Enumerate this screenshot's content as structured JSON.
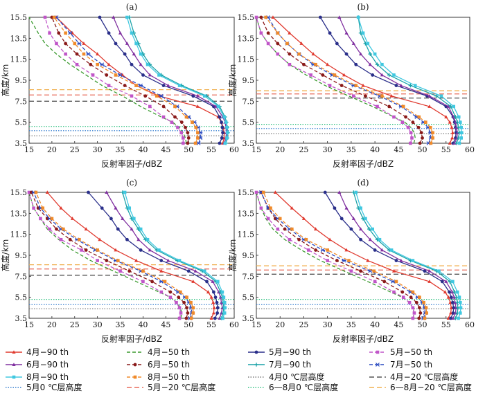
{
  "chart_data": {
    "type": "line",
    "xlabel": "反射率因子/dBZ",
    "ylabel": "高度/km",
    "xlim": [
      15,
      60
    ],
    "ylim": [
      3.5,
      15.5
    ],
    "xticks": [
      "15",
      "20",
      "25",
      "30",
      "35",
      "40",
      "45",
      "50",
      "55",
      "60"
    ],
    "yticks": [
      "3.5",
      "5.5",
      "7.5",
      "9.5",
      "11.5",
      "13.5",
      "15.5"
    ],
    "heights": [
      3.5,
      4.0,
      4.5,
      5.0,
      5.5,
      6.0,
      7.0,
      8.0,
      9.0,
      10.0,
      11.0,
      12.0,
      13.0,
      14.0,
      15.5
    ],
    "legend": [
      {
        "key": "apr90",
        "label": "4月−90 th",
        "color": "#e03a2f",
        "dash": "solid",
        "marker": "tri"
      },
      {
        "key": "apr50",
        "label": "4月−50 th",
        "color": "#3a9a2f",
        "dash": "dash",
        "marker": "none"
      },
      {
        "key": "may90",
        "label": "5月−90 th",
        "color": "#2a2f8a",
        "dash": "solid",
        "marker": "circle"
      },
      {
        "key": "may50",
        "label": "5月−50 th",
        "color": "#c055c8",
        "dash": "dash",
        "marker": "square"
      },
      {
        "key": "jun90",
        "label": "6月−90 th",
        "color": "#8030a0",
        "dash": "solid",
        "marker": "tri"
      },
      {
        "key": "jun50",
        "label": "6月−50 th",
        "color": "#8a1a1a",
        "dash": "dash",
        "marker": "circle"
      },
      {
        "key": "jul90",
        "label": "7月−90 th",
        "color": "#1aa2a8",
        "dash": "solid",
        "marker": "plus"
      },
      {
        "key": "jul50",
        "label": "7月−50 th",
        "color": "#2a4ac0",
        "dash": "dash",
        "marker": "star"
      },
      {
        "key": "aug90",
        "label": "8月−90 th",
        "color": "#40c8e0",
        "dash": "solid",
        "marker": "square"
      },
      {
        "key": "aug50",
        "label": "8月−50 th",
        "color": "#f08a2a",
        "dash": "dash",
        "marker": "square"
      },
      {
        "key": "apr0",
        "label": "4月0 ℃层高度",
        "color": "#777777",
        "dash": "dot",
        "marker": "none"
      },
      {
        "key": "apr20",
        "label": "4月−20 ℃层高度",
        "color": "#555555",
        "dash": "longdash",
        "marker": "none"
      },
      {
        "key": "may0",
        "label": "5月0 ℃层高度",
        "color": "#3a80d0",
        "dash": "dot",
        "marker": "none"
      },
      {
        "key": "may20",
        "label": "5月−20 ℃层高度",
        "color": "#e86a5a",
        "dash": "longdash",
        "marker": "none"
      },
      {
        "key": "jja0",
        "label": "6—8月0 ℃层高度",
        "color": "#30c080",
        "dash": "dot",
        "marker": "none"
      },
      {
        "key": "jja20",
        "label": "6—8月−20 ℃层高度",
        "color": "#f0b050",
        "dash": "longdash",
        "marker": "none"
      }
    ],
    "panels": [
      {
        "title": "(a)",
        "levels": {
          "apr0": 4.2,
          "may0": 4.7,
          "jja0": 5.1,
          "apr20": 7.5,
          "may20": 8.1,
          "jja20": 8.6
        },
        "series": {
          "apr90": [
            57.5,
            57.8,
            57.8,
            57.6,
            57.2,
            56.5,
            52,
            43.5,
            38.5,
            35.5,
            32.5,
            30,
            27,
            24.5,
            21
          ],
          "apr50": [
            49.5,
            49.3,
            48.8,
            48,
            46.5,
            44,
            39.5,
            35.5,
            31,
            27.5,
            24,
            21,
            18.5,
            17,
            15
          ],
          "may90": [
            56.8,
            57.3,
            57.5,
            57.4,
            57.2,
            56.8,
            55.5,
            51,
            44.5,
            40,
            37.5,
            36,
            34,
            32.5,
            30.5
          ],
          "may50": [
            48.8,
            48.8,
            48.4,
            47.6,
            46.3,
            44.5,
            41.5,
            37.5,
            32.5,
            29,
            25.5,
            23,
            21,
            19.5,
            18.5
          ],
          "jun90": [
            57.8,
            58.2,
            58.3,
            58.2,
            58,
            57.5,
            56,
            52,
            45.5,
            41.5,
            39.5,
            38,
            36.5,
            35,
            33.5
          ],
          "jun50": [
            49.8,
            50,
            49.8,
            49.3,
            48.5,
            47,
            44.5,
            40.5,
            36,
            32,
            28.5,
            25.5,
            23,
            21.5,
            20
          ],
          "jul90": [
            58.2,
            58.5,
            58.6,
            58.5,
            58.3,
            58,
            56.8,
            54,
            48.5,
            44,
            41.5,
            40,
            39,
            38,
            37
          ],
          "jul50": [
            52.2,
            52.6,
            52.6,
            52.1,
            51.3,
            50,
            47.5,
            44,
            39.5,
            35,
            31,
            28,
            26,
            24,
            21
          ],
          "aug90": [
            58,
            58.4,
            58.5,
            58.4,
            58.2,
            57.8,
            56.5,
            53.5,
            48,
            43.5,
            41,
            39.5,
            38.5,
            37.5,
            36.5
          ],
          "aug50": [
            51.5,
            52,
            52,
            51.6,
            50.8,
            49.5,
            47,
            43,
            38.5,
            34,
            30,
            27,
            25,
            23,
            20.5
          ]
        }
      },
      {
        "title": "(b)",
        "levels": {
          "apr0": 4.4,
          "may0": 4.9,
          "jja0": 5.3,
          "apr20": 7.8,
          "may20": 8.2,
          "jja20": 8.5
        },
        "series": {
          "apr90": [
            55.8,
            56.3,
            56.4,
            56.2,
            55.8,
            55,
            51.5,
            43.5,
            37.5,
            33.5,
            30,
            27,
            24.5,
            22,
            18.5
          ],
          "apr50": [
            48.2,
            48.5,
            48.3,
            47.6,
            46.3,
            44,
            39.5,
            34.5,
            29.5,
            25.5,
            22,
            19.5,
            17.5,
            16,
            15
          ],
          "may90": [
            56.5,
            57,
            57.1,
            57,
            56.8,
            56.5,
            55,
            51,
            44.5,
            39.5,
            36,
            34,
            32,
            30.5,
            28.5
          ],
          "may50": [
            47.5,
            47.8,
            47.6,
            47,
            45.8,
            44,
            40.5,
            35.5,
            30.5,
            26.5,
            22,
            19.5,
            17.5,
            16,
            15
          ],
          "jun90": [
            56.8,
            57.3,
            57.4,
            57.2,
            57,
            56.6,
            55.5,
            51.5,
            45.5,
            41.5,
            39,
            37,
            35.5,
            34,
            32.5
          ],
          "jun50": [
            49.5,
            50,
            49.8,
            49.2,
            48,
            46.5,
            43,
            38,
            33,
            29,
            25,
            22,
            19.5,
            17.5,
            16
          ],
          "jul90": [
            57.2,
            57.6,
            57.8,
            57.6,
            57.4,
            57,
            56,
            53,
            47.5,
            43,
            40.5,
            39,
            38,
            37,
            36.5
          ],
          "jul50": [
            51.3,
            51.8,
            51.7,
            51.2,
            50.2,
            48.8,
            45.5,
            41,
            35.5,
            31,
            27,
            24,
            21.5,
            19.5,
            17.5
          ],
          "aug90": [
            57.8,
            58.2,
            58.3,
            58.2,
            58,
            57.7,
            56.6,
            54,
            48.5,
            44,
            41.5,
            40,
            38.5,
            37.5,
            36.5
          ],
          "aug50": [
            51.8,
            52.2,
            52.2,
            51.7,
            50.7,
            49.3,
            46,
            41.5,
            36,
            31.5,
            27.5,
            24,
            21.5,
            19.5,
            17
          ]
        }
      },
      {
        "title": "(c)",
        "levels": {
          "apr0": 4.4,
          "may0": 4.8,
          "jja0": 5.3,
          "apr20": 7.6,
          "may20": 8.2,
          "jja20": 8.6
        },
        "series": {
          "apr90": [
            55,
            55.5,
            55.6,
            55.4,
            55,
            54.3,
            51,
            44,
            38.5,
            34,
            30.5,
            27.5,
            24.5,
            22,
            19
          ],
          "apr50": [
            48.3,
            48.5,
            48.2,
            47.5,
            46,
            43.5,
            38.5,
            33.5,
            28.5,
            24.5,
            21.5,
            19,
            17.5,
            16,
            15
          ],
          "may90": [
            55.8,
            56.3,
            56.4,
            56.2,
            55.9,
            55.5,
            54,
            50,
            44,
            39.5,
            36.5,
            34.5,
            33,
            31,
            28
          ],
          "may50": [
            48,
            48.3,
            48,
            47.3,
            46,
            44,
            40,
            35,
            30,
            26.5,
            22,
            19.5,
            17.5,
            16,
            15
          ],
          "jun90": [
            56.8,
            57.2,
            57.4,
            57.2,
            57,
            56.6,
            55.3,
            51.5,
            45.5,
            41.5,
            39,
            37.5,
            35.5,
            34,
            32
          ],
          "jun50": [
            49.5,
            49.8,
            49.6,
            49,
            47.8,
            46,
            42,
            37,
            32,
            27.5,
            24,
            21,
            19,
            17,
            15.5
          ],
          "jul90": [
            57.2,
            57.6,
            57.7,
            57.6,
            57.4,
            57,
            56,
            53,
            47.5,
            43,
            40.5,
            39,
            37.5,
            36.5,
            35.5
          ],
          "jul50": [
            50.3,
            50.7,
            50.6,
            50.1,
            49.2,
            47.7,
            44,
            39.5,
            34,
            29.5,
            25.5,
            22,
            19.5,
            17.5,
            16
          ],
          "aug90": [
            57.5,
            57.9,
            58,
            57.9,
            57.7,
            57.4,
            56.4,
            53.5,
            48,
            43.5,
            41,
            39.5,
            38,
            37,
            36
          ],
          "aug50": [
            50.6,
            51,
            51,
            50.5,
            49.6,
            48.2,
            44.8,
            40,
            34.5,
            30,
            26,
            22.5,
            20,
            18,
            16.5
          ]
        }
      },
      {
        "title": "(d)",
        "levels": {
          "apr0": 4.4,
          "may0": 4.8,
          "jja0": 5.3,
          "apr20": 7.7,
          "may20": 8.1,
          "jja20": 8.5
        },
        "series": {
          "apr90": [
            55.5,
            56,
            56.1,
            55.9,
            55.5,
            54.8,
            51.5,
            44,
            38.5,
            34,
            30.5,
            27.5,
            25,
            22.5,
            19
          ],
          "apr50": [
            48,
            48.3,
            48,
            47.3,
            45.8,
            43.3,
            38.5,
            33.5,
            28.5,
            24.5,
            21,
            18.5,
            17,
            16,
            15
          ],
          "may90": [
            56,
            56.5,
            56.6,
            56.4,
            56.1,
            55.7,
            54.2,
            50.5,
            44.5,
            40,
            37,
            35,
            33,
            31.5,
            29.5
          ],
          "may50": [
            48,
            48.3,
            48,
            47.3,
            46,
            44,
            40,
            35,
            30,
            26,
            22,
            19.5,
            17.5,
            16,
            15
          ],
          "jun90": [
            56.5,
            57,
            57.1,
            56.9,
            56.7,
            56.3,
            55,
            51.5,
            45.5,
            41.5,
            39,
            37,
            35.5,
            34,
            32.5
          ],
          "jun50": [
            49.3,
            49.6,
            49.4,
            48.8,
            47.6,
            45.8,
            42,
            37,
            32,
            27.5,
            24,
            21,
            19,
            17.5,
            16
          ],
          "jul90": [
            57,
            57.4,
            57.5,
            57.4,
            57.2,
            56.8,
            55.8,
            53,
            47.5,
            43,
            40.5,
            38.8,
            37.5,
            36.5,
            35.5
          ],
          "jul50": [
            50.2,
            50.6,
            50.5,
            50,
            49,
            47.5,
            43.8,
            39,
            33.5,
            29,
            25,
            22,
            19.5,
            17.5,
            16
          ],
          "aug90": [
            57.6,
            58,
            58.1,
            58,
            57.8,
            57.4,
            56.4,
            53.5,
            48,
            43.5,
            41,
            39.5,
            38,
            37,
            36
          ],
          "aug50": [
            50.5,
            50.9,
            50.8,
            50.3,
            49.4,
            48,
            44.5,
            39.8,
            34.5,
            30,
            25.5,
            22.5,
            20,
            18,
            16.5
          ]
        }
      }
    ]
  }
}
